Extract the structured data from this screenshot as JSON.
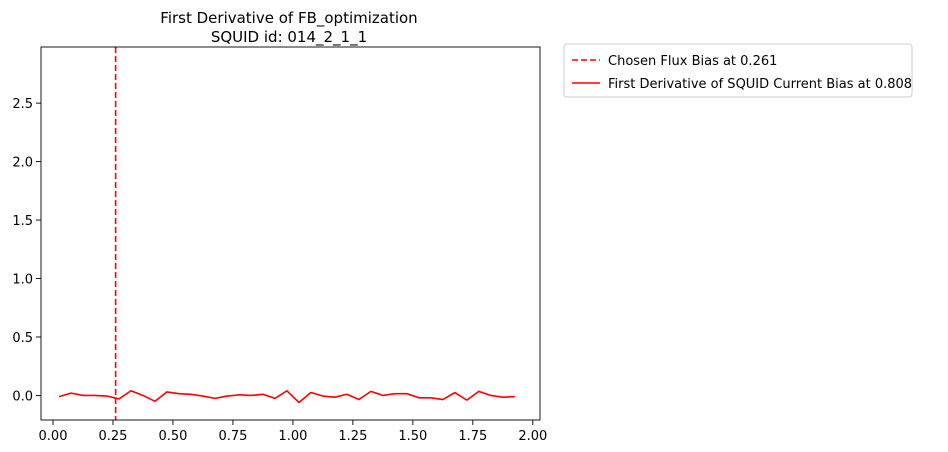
{
  "chart_data": {
    "type": "line",
    "title": "First Derivative of FB_optimization",
    "subtitle": "SQUID id: 014_2_1_1",
    "xlabel": "",
    "ylabel": "",
    "xlim": [
      -0.05,
      2.03
    ],
    "ylim": [
      -0.21,
      2.98
    ],
    "x_ticks": [
      0.0,
      0.25,
      0.5,
      0.75,
      1.0,
      1.25,
      1.5,
      1.75,
      2.0
    ],
    "x_tick_labels": [
      "0.00",
      "0.25",
      "0.50",
      "0.75",
      "1.00",
      "1.25",
      "1.50",
      "1.75",
      "2.00"
    ],
    "y_ticks": [
      0.0,
      0.5,
      1.0,
      1.5,
      2.0,
      2.5
    ],
    "y_tick_labels": [
      "0.0",
      "0.5",
      "1.0",
      "1.5",
      "2.0",
      "2.5"
    ],
    "grid": false,
    "legend_placement": "outside-upper-right",
    "colors": {
      "series": "#ff0000"
    },
    "vline": {
      "name": "Chosen Flux Bias at 0.261",
      "x": 0.261,
      "style": "dashed",
      "color": "#ff0000"
    },
    "series": [
      {
        "name": "First Derivative of SQUID Current Bias at 0.808",
        "color": "#ff0000",
        "x": [
          0.025,
          0.075,
          0.125,
          0.175,
          0.225,
          0.275,
          0.325,
          0.375,
          0.425,
          0.475,
          0.525,
          0.575,
          0.625,
          0.675,
          0.725,
          0.775,
          0.825,
          0.875,
          0.925,
          0.975,
          1.025,
          1.075,
          1.125,
          1.175,
          1.225,
          1.275,
          1.325,
          1.375,
          1.425,
          1.475,
          1.525,
          1.575,
          1.625,
          1.675,
          1.725,
          1.775,
          1.825,
          1.875,
          1.925
        ],
        "y": [
          -0.01,
          0.02,
          0.0,
          0.0,
          -0.005,
          -0.03,
          0.04,
          0.0,
          -0.05,
          0.03,
          0.015,
          0.01,
          -0.005,
          -0.025,
          -0.005,
          0.005,
          0.0,
          0.01,
          -0.025,
          0.04,
          -0.06,
          0.025,
          -0.005,
          -0.015,
          0.01,
          -0.035,
          0.035,
          0.0,
          0.015,
          0.015,
          -0.02,
          -0.02,
          -0.035,
          0.025,
          -0.04,
          0.035,
          0.0,
          -0.015,
          -0.01
        ]
      }
    ]
  }
}
